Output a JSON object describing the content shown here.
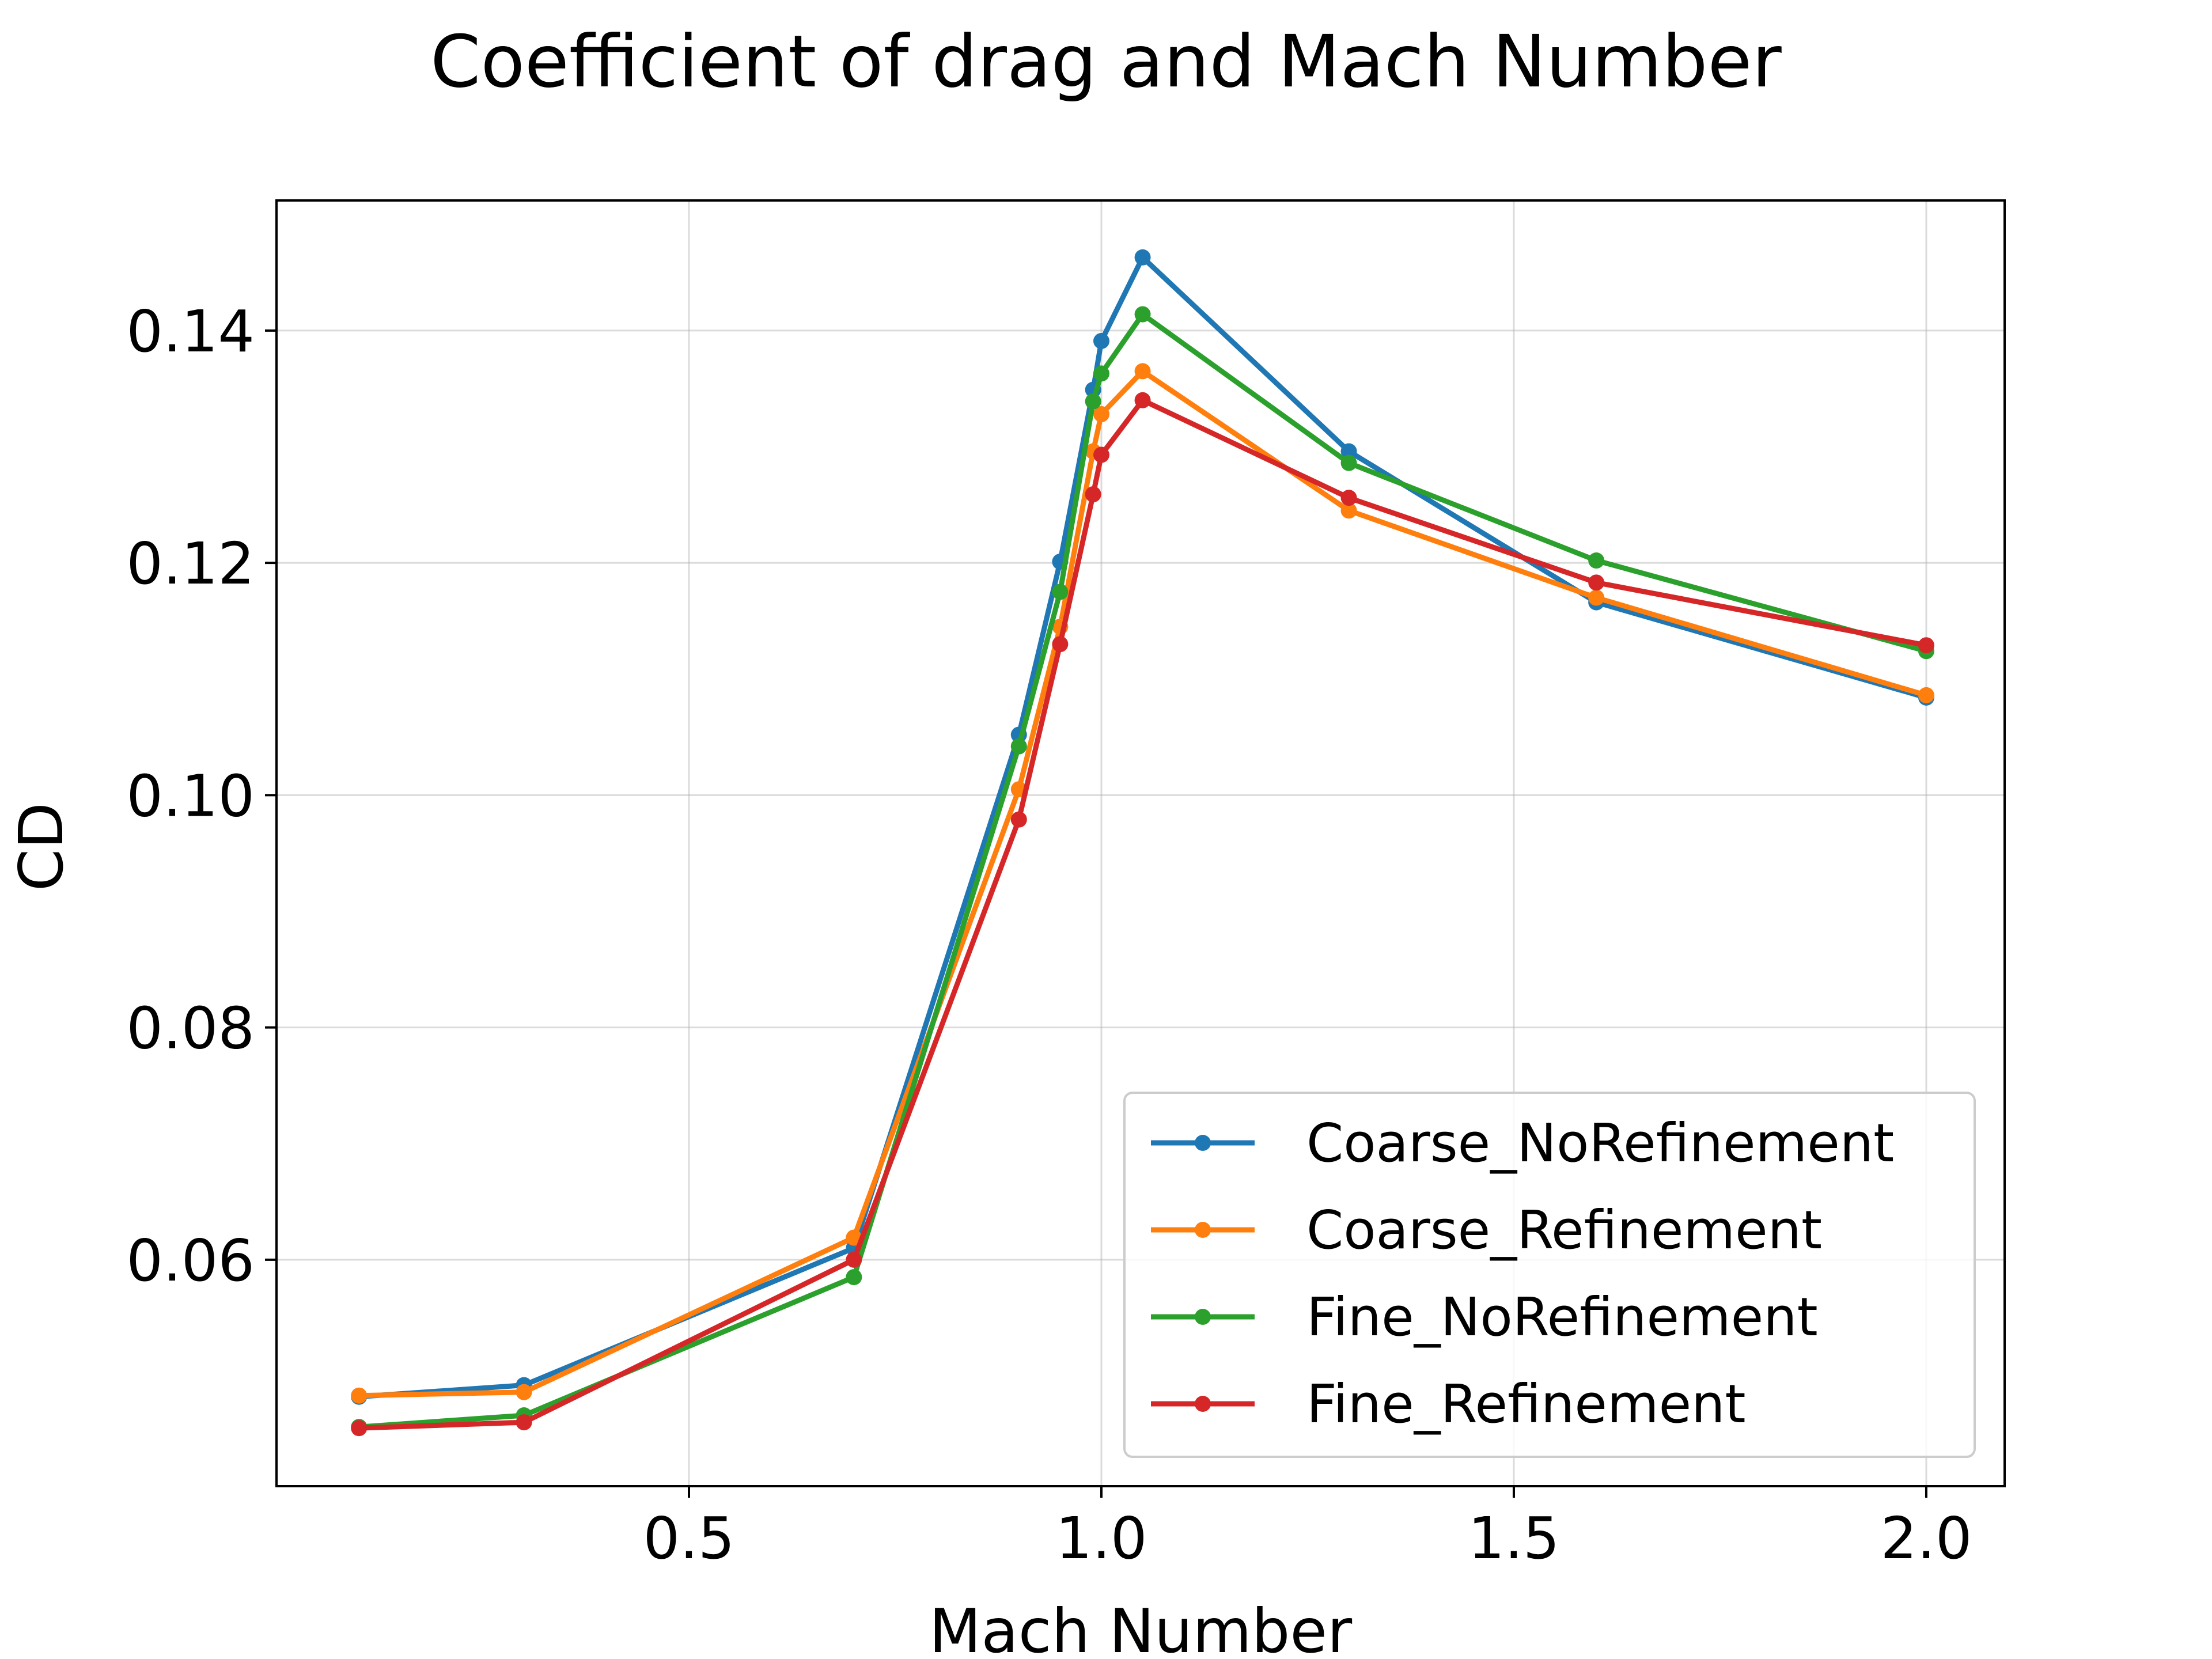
{
  "chart_data": {
    "type": "line",
    "title": "Coefficient of drag and Mach Number",
    "xlabel": "Mach Number",
    "ylabel": "CD",
    "xlim": [
      0.0,
      2.095
    ],
    "ylim": [
      0.0405,
      0.1512
    ],
    "xticks": [
      0.5,
      1.0,
      1.5,
      2.0
    ],
    "xtick_labels": [
      "0.5",
      "1.0",
      "1.5",
      "2.0"
    ],
    "yticks": [
      0.06,
      0.08,
      0.1,
      0.12,
      0.14
    ],
    "ytick_labels": [
      "0.06",
      "0.08",
      "0.10",
      "0.12",
      "0.14"
    ],
    "grid": true,
    "legend_position": "lower-right",
    "x": [
      0.1,
      0.3,
      0.7,
      0.9,
      0.95,
      0.99,
      1.0,
      1.05,
      1.3,
      1.6,
      2.0
    ],
    "series": [
      {
        "name": "Coarse_NoRefinement",
        "color": "#1f77b4",
        "values": [
          0.0482,
          0.0492,
          0.061,
          0.1052,
          0.1201,
          0.1349,
          0.1391,
          0.1463,
          0.1296,
          0.1166,
          0.1084
        ]
      },
      {
        "name": "Coarse_Refinement",
        "color": "#ff7f0e",
        "values": [
          0.0483,
          0.0486,
          0.0619,
          0.1005,
          0.1145,
          0.1296,
          0.1328,
          0.1365,
          0.1245,
          0.117,
          0.1086
        ]
      },
      {
        "name": "Fine_NoRefinement",
        "color": "#2ca02c",
        "values": [
          0.0456,
          0.0466,
          0.0585,
          0.1042,
          0.1175,
          0.1339,
          0.1363,
          0.1414,
          0.1286,
          0.1202,
          0.1124
        ]
      },
      {
        "name": "Fine_Refinement",
        "color": "#d62728",
        "values": [
          0.0455,
          0.046,
          0.06,
          0.0979,
          0.113,
          0.1259,
          0.1293,
          0.134,
          0.1256,
          0.1183,
          0.1129
        ]
      }
    ]
  }
}
